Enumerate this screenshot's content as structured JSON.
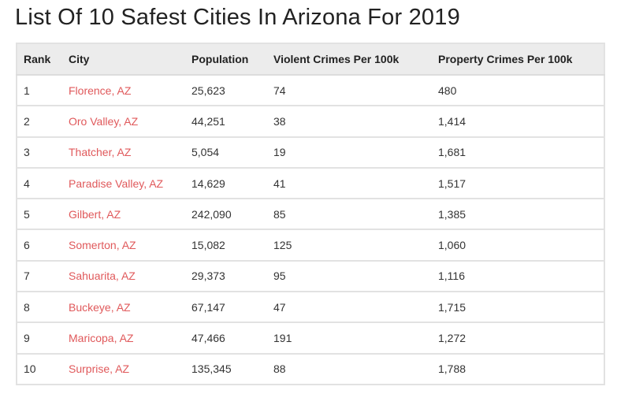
{
  "title": "List Of 10 Safest Cities In Arizona For 2019",
  "colors": {
    "link": "#e0595b",
    "header_bg": "#ececec"
  },
  "table": {
    "columns": [
      "Rank",
      "City",
      "Population",
      "Violent Crimes Per 100k",
      "Property Crimes Per 100k"
    ],
    "rows": [
      [
        "1",
        "Florence, AZ",
        "25,623",
        "74",
        "480"
      ],
      [
        "2",
        "Oro Valley, AZ",
        "44,251",
        "38",
        "1,414"
      ],
      [
        "3",
        "Thatcher, AZ",
        "5,054",
        "19",
        "1,681"
      ],
      [
        "4",
        "Paradise Valley, AZ",
        "14,629",
        "41",
        "1,517"
      ],
      [
        "5",
        "Gilbert, AZ",
        "242,090",
        "85",
        "1,385"
      ],
      [
        "6",
        "Somerton, AZ",
        "15,082",
        "125",
        "1,060"
      ],
      [
        "7",
        "Sahuarita, AZ",
        "29,373",
        "95",
        "1,116"
      ],
      [
        "8",
        "Buckeye, AZ",
        "67,147",
        "47",
        "1,715"
      ],
      [
        "9",
        "Maricopa, AZ",
        "47,466",
        "191",
        "1,272"
      ],
      [
        "10",
        "Surprise, AZ",
        "135,345",
        "88",
        "1,788"
      ]
    ]
  }
}
